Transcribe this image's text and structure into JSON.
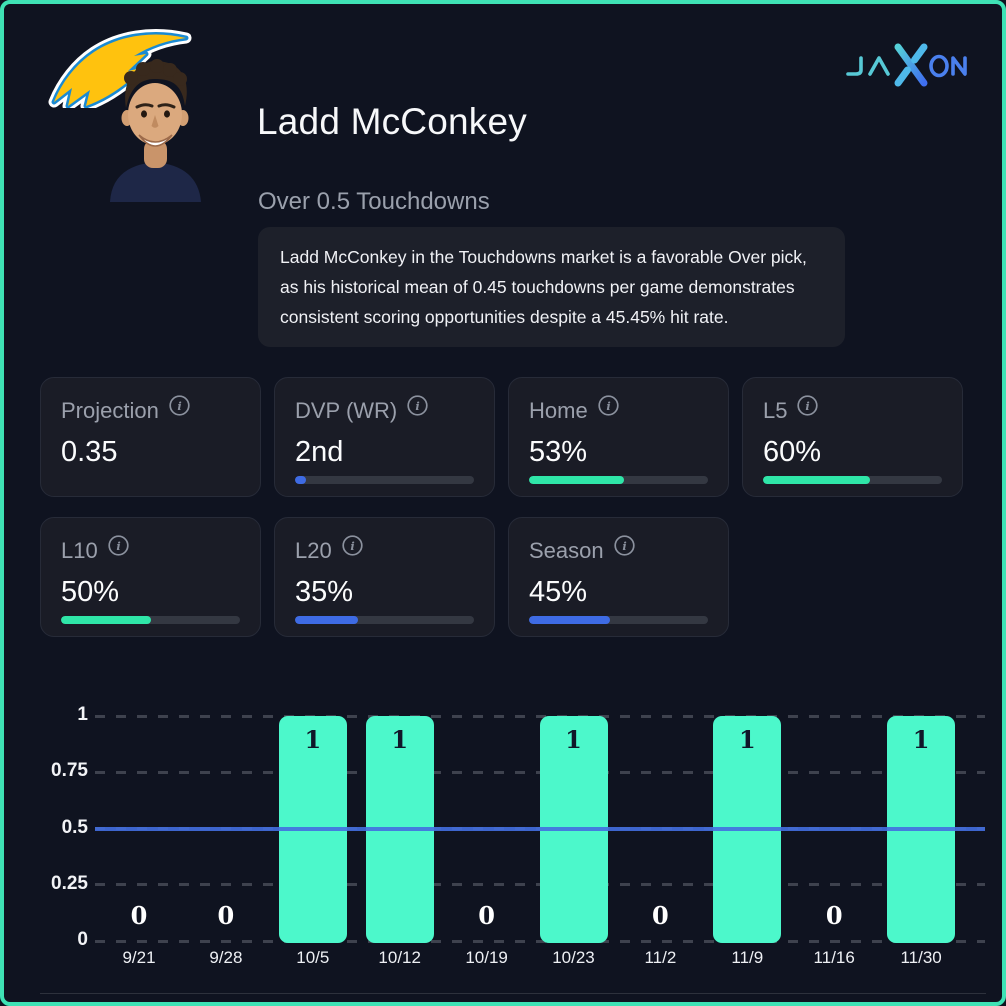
{
  "page": {
    "background": "#0f1320",
    "frame_color": "#3fe2b5"
  },
  "header": {
    "title": "Ladd McConkey",
    "subtitle": "Over 0.5 Touchdowns",
    "description": "Ladd McConkey in the Touchdowns market is a favorable Over pick, as his historical mean of 0.45 touchdowns per game demonstrates consistent scoring opportunities despite a 45.45% hit rate.",
    "brand": "JAXON"
  },
  "icons": {
    "team_logo": "chargers-lightning-bolt",
    "player_image": "player-headshot",
    "stat_info": "info-circle"
  },
  "colors": {
    "teal_fill": "#2fe6a8",
    "blue_fill": "#3e6be4",
    "track": "#343842",
    "card_bg": "#1a1c26",
    "bolt_gold": "#ffc20e",
    "bolt_blue": "#1a8ad2"
  },
  "stats": [
    {
      "label": "Projection",
      "value": "0.35",
      "bar": null
    },
    {
      "label": "DVP (WR)",
      "value": "2nd",
      "bar": {
        "pct": 6,
        "color": "#3e6be4"
      }
    },
    {
      "label": "Home",
      "value": "53%",
      "bar": {
        "pct": 53,
        "color": "#2fe6a8"
      }
    },
    {
      "label": "L5",
      "value": "60%",
      "bar": {
        "pct": 60,
        "color": "#2fe6a8"
      }
    },
    {
      "label": "L10",
      "value": "50%",
      "bar": {
        "pct": 50,
        "color": "#2fe6a8"
      }
    },
    {
      "label": "L20",
      "value": "35%",
      "bar": {
        "pct": 35,
        "color": "#3e6be4"
      }
    },
    {
      "label": "Season",
      "value": "45%",
      "bar": {
        "pct": 45,
        "color": "#3e6be4"
      }
    }
  ],
  "chart_data": {
    "type": "bar",
    "title": "",
    "xlabel": "",
    "ylabel": "",
    "categories": [
      "9/21",
      "9/28",
      "10/5",
      "10/12",
      "10/19",
      "10/23",
      "11/2",
      "11/9",
      "11/16",
      "11/30"
    ],
    "values": [
      0,
      0,
      1,
      1,
      0,
      1,
      0,
      1,
      0,
      1
    ],
    "yticks": [
      0,
      0.25,
      0.5,
      0.75,
      1
    ],
    "ylim": [
      0,
      1
    ],
    "grid": "dashed-horizontal",
    "legend": "none",
    "prop_line_value": 0.5,
    "bar_color": "#4cf8cb",
    "bar_label_color": "#101729",
    "zero_label_color": "#ffffff",
    "prop_line_color": "#436fe0",
    "grid_color": "#3e424e"
  }
}
